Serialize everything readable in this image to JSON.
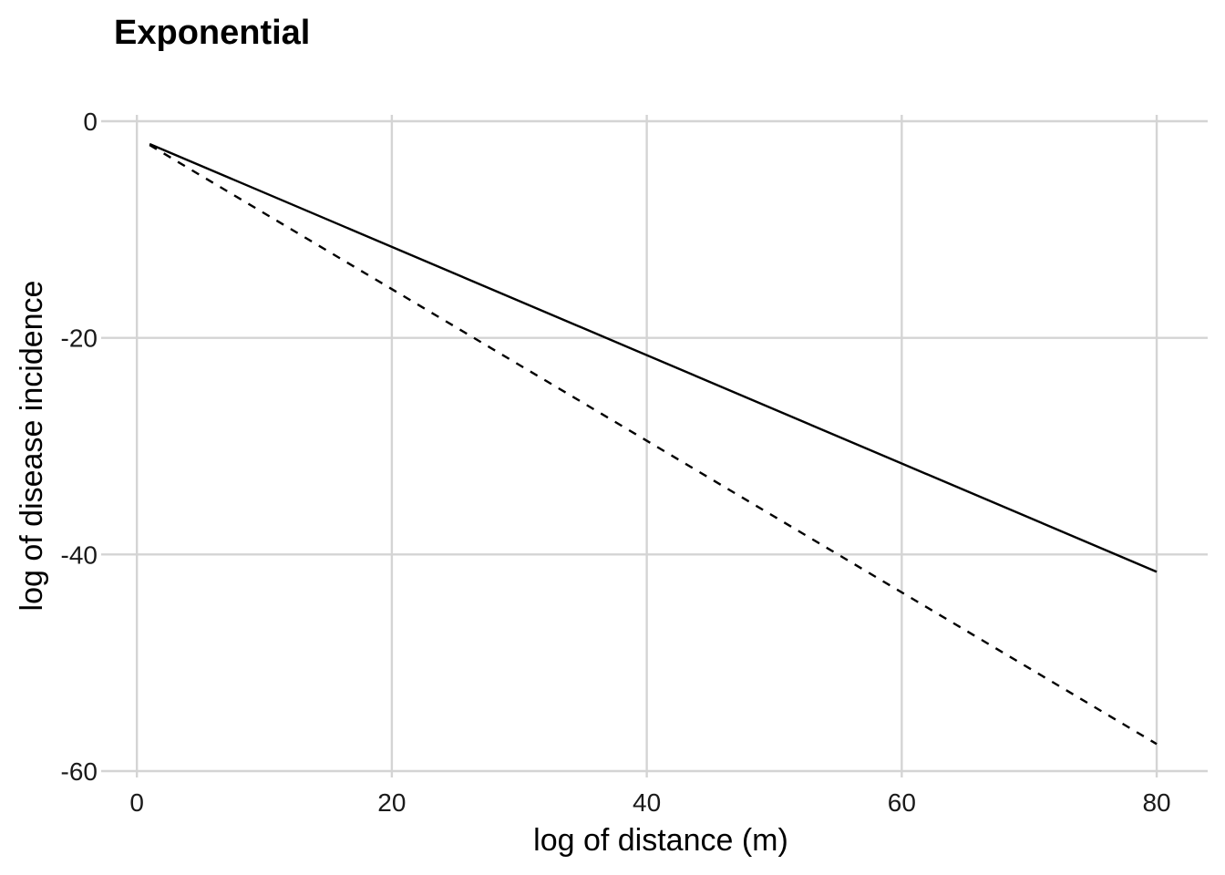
{
  "chart_data": {
    "type": "line",
    "title": "Exponential",
    "xlabel": "log of distance (m)",
    "ylabel": "log of disease incidence",
    "xlim": [
      -2.3,
      84
    ],
    "ylim": [
      -60,
      0
    ],
    "xticks": [
      0,
      20,
      40,
      60,
      80
    ],
    "yticks": [
      0,
      -20,
      -40,
      -60
    ],
    "xtick_labels": [
      "0",
      "20",
      "40",
      "60",
      "80"
    ],
    "ytick_labels": [
      "0",
      "-20",
      "-40",
      "-60"
    ],
    "grid": true,
    "grid_color": "#d4d4d4",
    "legend": "none",
    "series": [
      {
        "style": "solid",
        "color": "#000000",
        "x": [
          1,
          80
        ],
        "y": [
          -2.1,
          -41.6
        ]
      },
      {
        "style": "dashed",
        "color": "#000000",
        "x": [
          1,
          80
        ],
        "y": [
          -2.2,
          -57.5
        ]
      }
    ]
  }
}
